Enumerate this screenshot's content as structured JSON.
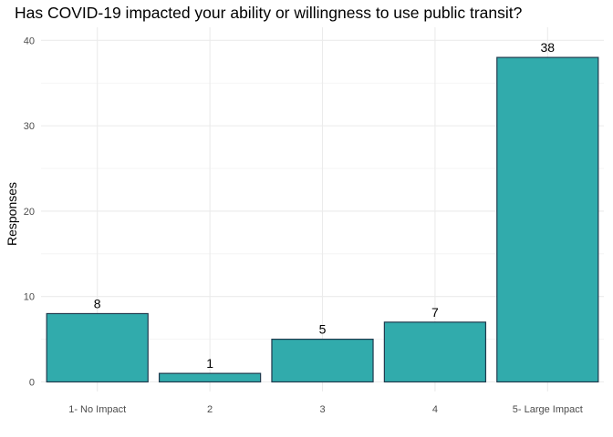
{
  "chart_data": {
    "type": "bar",
    "title": "Has COVID-19 impacted your ability or willingness to use public transit?",
    "xlabel": "",
    "ylabel": "Responses",
    "categories": [
      "1- No Impact",
      "2",
      "3",
      "4",
      "5- Large Impact"
    ],
    "values": [
      8,
      1,
      5,
      7,
      38
    ],
    "ylim": [
      0,
      40
    ],
    "yticks": [
      0,
      10,
      20,
      30,
      40
    ],
    "grid": true,
    "legend": "none",
    "colors": {
      "bar_fill": "#31abac",
      "bar_stroke": "#1f3a4d",
      "grid": "#ebebeb"
    }
  }
}
